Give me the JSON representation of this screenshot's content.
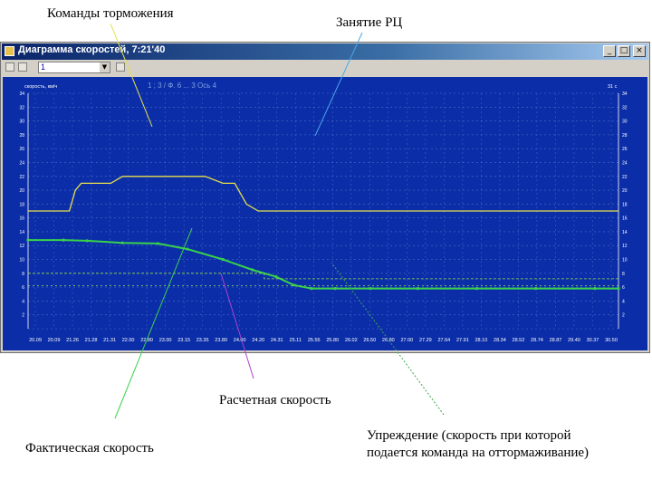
{
  "annotations": {
    "brake_commands": "Команды торможения",
    "route_occupation": "Занятие РЦ",
    "calc_speed": "Расчетная скорость",
    "actual_speed": "Фактическая скорость",
    "advance": "Упреждение (скорость при которой подается команда на оттормаживание)"
  },
  "window": {
    "title": "Диаграмма скоростей",
    "time": "7:21'40",
    "combo_value": "1"
  },
  "plot": {
    "header": "1 ; 3 / Ф. 6 ... 3 Ось 4",
    "corner_label": "31 с",
    "ylabel": "скорость, км/ч"
  },
  "colors": {
    "background": "#0b2ea8",
    "brake_line": "#e6e04a",
    "actual_speed": "#39d24a",
    "calc_speed": "#8fe04a",
    "grid": "#7f9fe0",
    "ticks": "#ffffff"
  },
  "chart_data": {
    "type": "line",
    "x_tick_labels": [
      "20.09",
      "20.09",
      "21.26",
      "21.28",
      "21.31",
      "22.00",
      "22.80",
      "23.00",
      "23.15",
      "23.35",
      "23.80",
      "24.00",
      "24.20",
      "24.31",
      "25.11",
      "25.55",
      "25.80",
      "26.02",
      "26.50",
      "26.80",
      "27.00",
      "27.29",
      "27.64",
      "27.91",
      "28.10",
      "28.34",
      "28.52",
      "28.74",
      "28.87",
      "29.40",
      "30.37",
      "30.50"
    ],
    "series": [
      {
        "name": "Команды торможения",
        "points": [
          [
            0,
            17
          ],
          [
            0.07,
            17
          ],
          [
            0.08,
            20
          ],
          [
            0.09,
            21
          ],
          [
            0.14,
            21
          ],
          [
            0.16,
            22
          ],
          [
            0.3,
            22
          ],
          [
            0.33,
            21
          ],
          [
            0.35,
            21
          ],
          [
            0.37,
            18
          ],
          [
            0.39,
            17
          ],
          [
            1,
            17
          ]
        ]
      },
      {
        "name": "Фактическая скорость",
        "points": [
          [
            0,
            12.8
          ],
          [
            0.06,
            12.8
          ],
          [
            0.1,
            12.7
          ],
          [
            0.16,
            12.4
          ],
          [
            0.22,
            12.3
          ],
          [
            0.27,
            11.5
          ],
          [
            0.33,
            10
          ],
          [
            0.38,
            8.5
          ],
          [
            0.42,
            7.5
          ],
          [
            0.45,
            6.3
          ],
          [
            0.48,
            5.8
          ],
          [
            0.52,
            5.8
          ],
          [
            0.58,
            5.8
          ],
          [
            0.66,
            5.8
          ],
          [
            0.76,
            5.8
          ],
          [
            0.86,
            5.8
          ],
          [
            0.96,
            5.8
          ],
          [
            1,
            5.8
          ]
        ]
      },
      {
        "name": "Расчетная скорость",
        "points": [
          [
            0,
            8
          ],
          [
            0.4,
            8
          ],
          [
            0.4,
            7.2
          ],
          [
            1,
            7.2
          ]
        ]
      },
      {
        "name": "Упреждение",
        "points": [
          [
            0,
            6.2
          ],
          [
            1,
            6.2
          ]
        ]
      }
    ],
    "ylim": [
      0,
      34
    ]
  }
}
